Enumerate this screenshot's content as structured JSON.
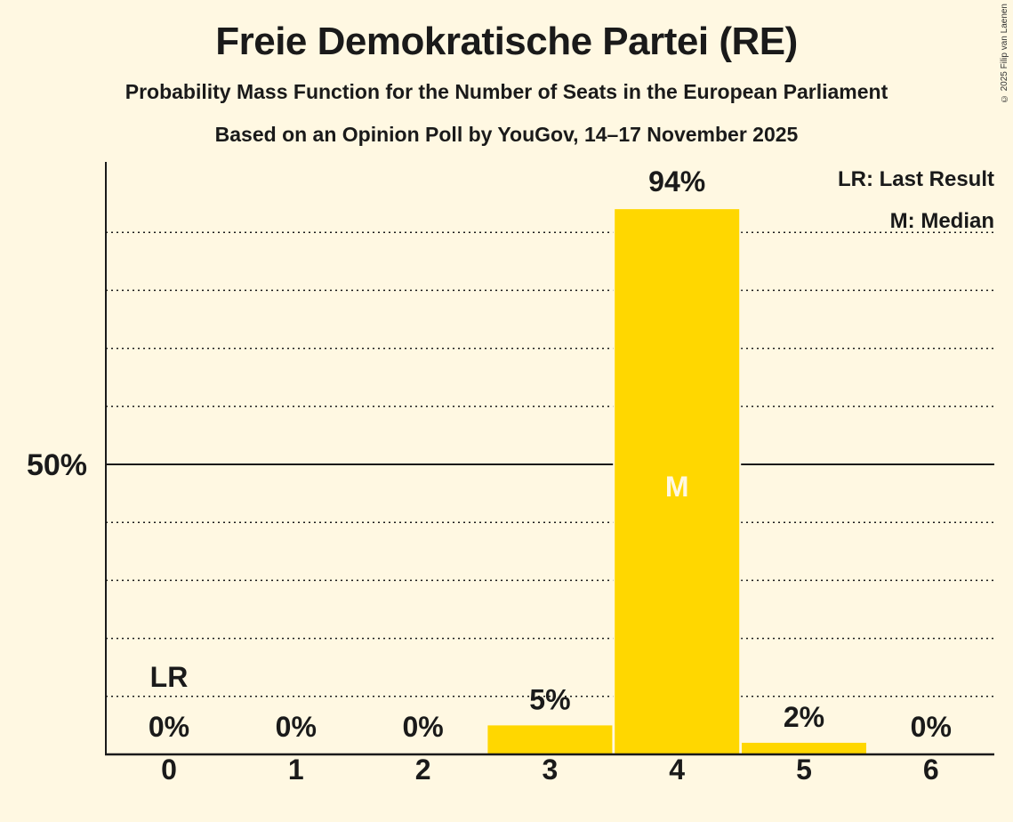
{
  "header": {
    "title": "Freie Demokratische Partei (RE)",
    "subtitle": "Probability Mass Function for the Number of Seats in the European Parliament",
    "source": "Based on an Opinion Poll by YouGov, 14–17 November 2025",
    "copyright": "© 2025 Filip van Laenen"
  },
  "legend": {
    "lr": "LR: Last Result",
    "m": "M: Median"
  },
  "colors": {
    "background": "#FFF8E2",
    "bar": "#FFD700",
    "text": "#1a1a1a"
  },
  "chart_data": {
    "type": "bar",
    "title": "Freie Demokratische Partei (RE)",
    "subtitle": "Probability Mass Function for the Number of Seats in the European Parliament",
    "caption": "Based on an Opinion Poll by YouGov, 14–17 November 2025",
    "xlabel": "",
    "ylabel": "",
    "categories": [
      "0",
      "1",
      "2",
      "3",
      "4",
      "5",
      "6"
    ],
    "values": [
      0,
      0,
      0,
      5,
      94,
      2,
      0
    ],
    "value_labels": [
      "0%",
      "0%",
      "0%",
      "5%",
      "94%",
      "2%",
      "0%"
    ],
    "ylim": [
      0,
      100
    ],
    "yticks": [
      {
        "value": 50,
        "label": "50%"
      }
    ],
    "grid": {
      "dotted_every": 10,
      "solid_at": 50
    },
    "annotations": [
      {
        "category": "0",
        "text": "LR",
        "meaning": "Last Result"
      },
      {
        "category": "4",
        "text": "M",
        "meaning": "Median"
      }
    ],
    "legend": [
      "LR: Last Result",
      "M: Median"
    ],
    "legend_position": "top-right"
  }
}
